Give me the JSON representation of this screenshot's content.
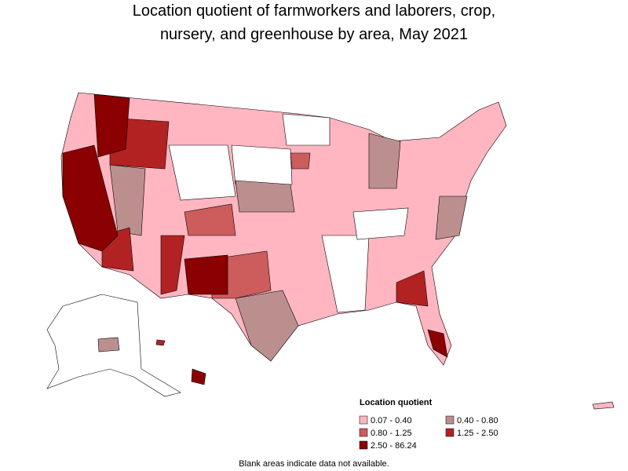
{
  "title": [
    "Location quotient of farmworkers and laborers, crop,",
    "nursery, and greenhouse by area, May 2021"
  ],
  "legend": {
    "title": "Location quotient",
    "items": [
      {
        "label": "0.07 - 0.40",
        "color": "#ffb6c1"
      },
      {
        "label": "0.40 - 0.80",
        "color": "#bc8f8f"
      },
      {
        "label": "0.80 - 1.25",
        "color": "#cd5c5c"
      },
      {
        "label": "1.25 - 2.50",
        "color": "#b22222"
      },
      {
        "label": "2.50 - 86.24",
        "color": "#8b0000"
      }
    ]
  },
  "note": "Blank areas indicate data not available."
}
